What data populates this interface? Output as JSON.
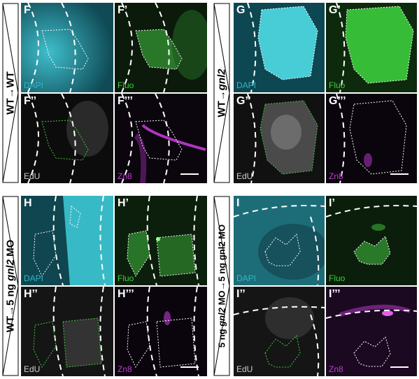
{
  "colors": {
    "dapi": "#2fb7c4",
    "fluo": "#3fcc3f",
    "edu": "#cfcfcf",
    "zn8": "#c23ad6"
  },
  "rows": [
    {
      "label_prefix": "WT→WT",
      "label_italic": "",
      "label_suffix": "",
      "panels": [
        {
          "letter": "F",
          "channel": "DAPI",
          "type": "dapi"
        },
        {
          "letter": "F’",
          "channel": "Fluo",
          "type": "fluo"
        },
        {
          "letter": "F’’",
          "channel": "EdU",
          "type": "edu"
        },
        {
          "letter": "F’’’",
          "channel": "Zn8",
          "type": "zn8",
          "scalebar": true
        }
      ]
    },
    {
      "label_prefix": "WT→",
      "label_italic": "gnl2",
      "label_suffix": "",
      "panels": [
        {
          "letter": "G",
          "channel": "DAPI",
          "type": "dapi"
        },
        {
          "letter": "G’",
          "channel": "Fluo",
          "type": "fluo"
        },
        {
          "letter": "G’’",
          "channel": "EdU",
          "type": "edu"
        },
        {
          "letter": "G’’’",
          "channel": "Zn8",
          "type": "zn8",
          "scalebar": true
        }
      ]
    },
    {
      "label_prefix": "WT→5 ng ",
      "label_italic": "gnl2",
      "label_suffix": " MO",
      "panels": [
        {
          "letter": "H",
          "channel": "DAPI",
          "type": "dapi"
        },
        {
          "letter": "H’",
          "channel": "Fluo",
          "type": "fluo"
        },
        {
          "letter": "H’’",
          "channel": "EdU",
          "type": "edu"
        },
        {
          "letter": "H’’’",
          "channel": "Zn8",
          "type": "zn8",
          "scalebar": true
        }
      ]
    },
    {
      "label_prefix": "5 ng ",
      "label_italic": "gnl2",
      "label_suffix": " MO→5 ng gnl2 MO",
      "panels": [
        {
          "letter": "I",
          "channel": "DAPI",
          "type": "dapi"
        },
        {
          "letter": "I’",
          "channel": "Fluo",
          "type": "fluo"
        },
        {
          "letter": "I’’",
          "channel": "EdU",
          "type": "edu"
        },
        {
          "letter": "I’’’",
          "channel": "Zn8",
          "type": "zn8",
          "scalebar": true
        }
      ]
    }
  ]
}
